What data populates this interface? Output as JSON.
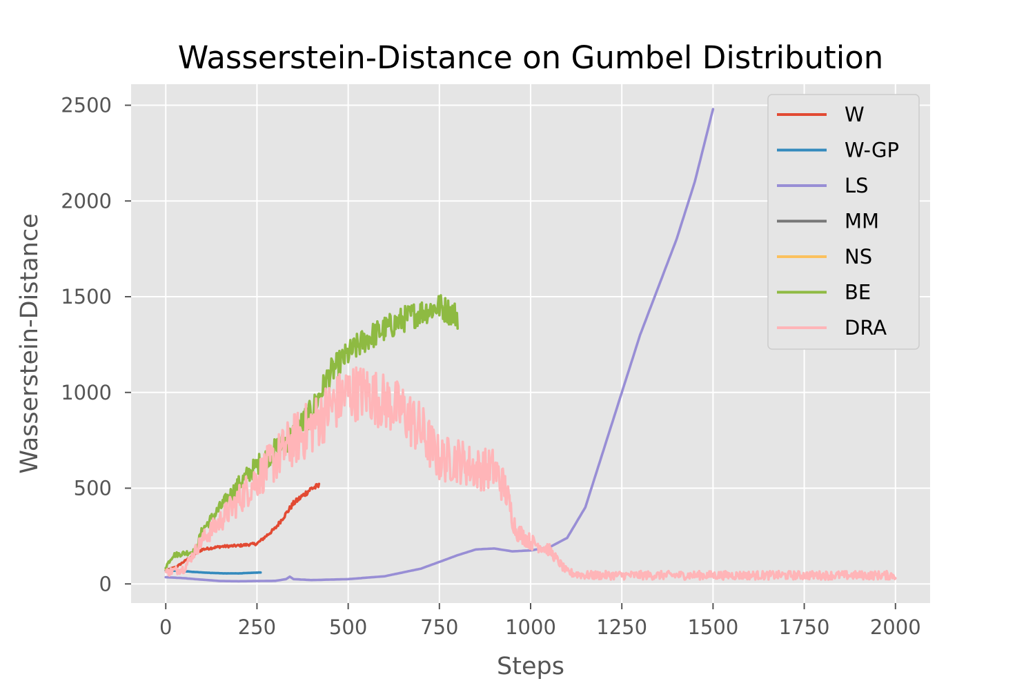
{
  "chart_data": {
    "type": "line",
    "title": "Wasserstein-Distance on Gumbel Distribution",
    "xlabel": "Steps",
    "ylabel": "Wasserstein-Distance",
    "xlim": [
      -95,
      2095
    ],
    "ylim": [
      -100,
      2610
    ],
    "xticks": [
      0,
      250,
      500,
      750,
      1000,
      1250,
      1500,
      1750,
      2000
    ],
    "yticks": [
      0,
      500,
      1000,
      1500,
      2000,
      2500
    ],
    "grid": true,
    "legend_position": "top-right",
    "series": [
      {
        "name": "W",
        "color": "#E24A33",
        "noise": 25,
        "x": [
          0,
          30,
          60,
          100,
          150,
          200,
          250,
          300,
          350,
          400,
          420
        ],
        "y": [
          70,
          90,
          130,
          180,
          195,
          200,
          210,
          290,
          420,
          500,
          510
        ]
      },
      {
        "name": "W-GP",
        "color": "#348ABD",
        "noise": 3,
        "x": [
          0,
          40,
          80,
          120,
          160,
          200,
          260
        ],
        "y": [
          70,
          68,
          62,
          58,
          55,
          55,
          60
        ]
      },
      {
        "name": "LS",
        "color": "#988ED5",
        "noise": 0,
        "x": [
          0,
          50,
          100,
          150,
          200,
          300,
          330,
          340,
          350,
          400,
          500,
          600,
          700,
          800,
          850,
          900,
          950,
          1000,
          1050,
          1100,
          1150,
          1200,
          1250,
          1300,
          1350,
          1400,
          1450,
          1500
        ],
        "y": [
          35,
          30,
          22,
          15,
          14,
          16,
          25,
          38,
          25,
          20,
          25,
          40,
          80,
          150,
          180,
          185,
          170,
          175,
          190,
          240,
          400,
          700,
          1000,
          1300,
          1550,
          1800,
          2100,
          2480
        ]
      },
      {
        "name": "MM",
        "color": "#777777",
        "noise": 0,
        "x": [
          0,
          5,
          10
        ],
        "y": [
          75,
          75,
          75
        ]
      },
      {
        "name": "NS",
        "color": "#FBC15E",
        "noise": 8,
        "x": [
          0,
          10,
          20,
          30
        ],
        "y": [
          75,
          70,
          80,
          75
        ]
      },
      {
        "name": "BE",
        "color": "#8EBA42",
        "noise": 70,
        "x": [
          0,
          20,
          50,
          80,
          100,
          150,
          200,
          250,
          300,
          350,
          400,
          450,
          500,
          550,
          600,
          650,
          700,
          750,
          800
        ],
        "y": [
          90,
          150,
          160,
          170,
          280,
          400,
          520,
          620,
          700,
          780,
          900,
          1100,
          1200,
          1280,
          1330,
          1380,
          1420,
          1450,
          1400
        ]
      },
      {
        "name": "DRA",
        "color": "#FFB5B8",
        "noise": 150,
        "x": [
          0,
          50,
          100,
          150,
          200,
          250,
          300,
          350,
          400,
          450,
          500,
          550,
          600,
          650,
          700,
          750,
          800,
          850,
          900,
          930,
          960,
          1000,
          1050,
          1100,
          1150,
          1200,
          1500,
          2000
        ],
        "y": [
          60,
          80,
          230,
          330,
          440,
          550,
          650,
          750,
          820,
          920,
          1000,
          1000,
          950,
          900,
          800,
          650,
          650,
          600,
          600,
          500,
          280,
          220,
          180,
          60,
          45,
          45,
          45,
          45
        ]
      }
    ]
  }
}
